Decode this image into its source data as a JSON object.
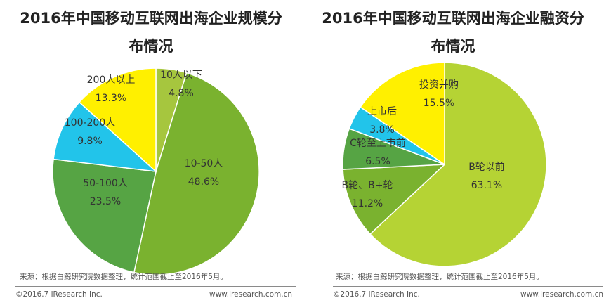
{
  "chart_data": [
    {
      "type": "pie",
      "title_line1": "2016年中国移动互联网出海企业规模分",
      "title_line2": "布情况",
      "slices": [
        {
          "label": "10人以下",
          "value": 4.8,
          "value_text": "4.8%",
          "color": "#a6c63e"
        },
        {
          "label": "10-50人",
          "value": 48.6,
          "value_text": "48.6%",
          "color": "#7ab22f"
        },
        {
          "label": "50-100人",
          "value": 23.5,
          "value_text": "23.5%",
          "color": "#56a444"
        },
        {
          "label": "100-200人",
          "value": 9.8,
          "value_text": "9.8%",
          "color": "#22c4ea"
        },
        {
          "label": "200人以上",
          "value": 13.3,
          "value_text": "13.3%",
          "color": "#fff000"
        }
      ]
    },
    {
      "type": "pie",
      "title_line1": "2016年中国移动互联网出海企业融资分",
      "title_line2": "布情况",
      "slices": [
        {
          "label": "B轮以前",
          "value": 63.1,
          "value_text": "63.1%",
          "color": "#b5d334"
        },
        {
          "label": "B轮、B+轮",
          "value": 11.2,
          "value_text": "11.2%",
          "color": "#7ab22f"
        },
        {
          "label": "C轮至上市前",
          "value": 6.5,
          "value_text": "6.5%",
          "color": "#56a444"
        },
        {
          "label": "上市后",
          "value": 3.8,
          "value_text": "3.8%",
          "color": "#22c4ea"
        },
        {
          "label": "投资并购",
          "value": 15.5,
          "value_text": "15.5%",
          "color": "#fff000"
        }
      ]
    }
  ],
  "footer": {
    "source": "来源：根据白鲸研究院数据整理，统计范围截止至2016年5月。",
    "copyright": "©2016.7 iResearch Inc.",
    "website": "www.iresearch.com.cn"
  }
}
